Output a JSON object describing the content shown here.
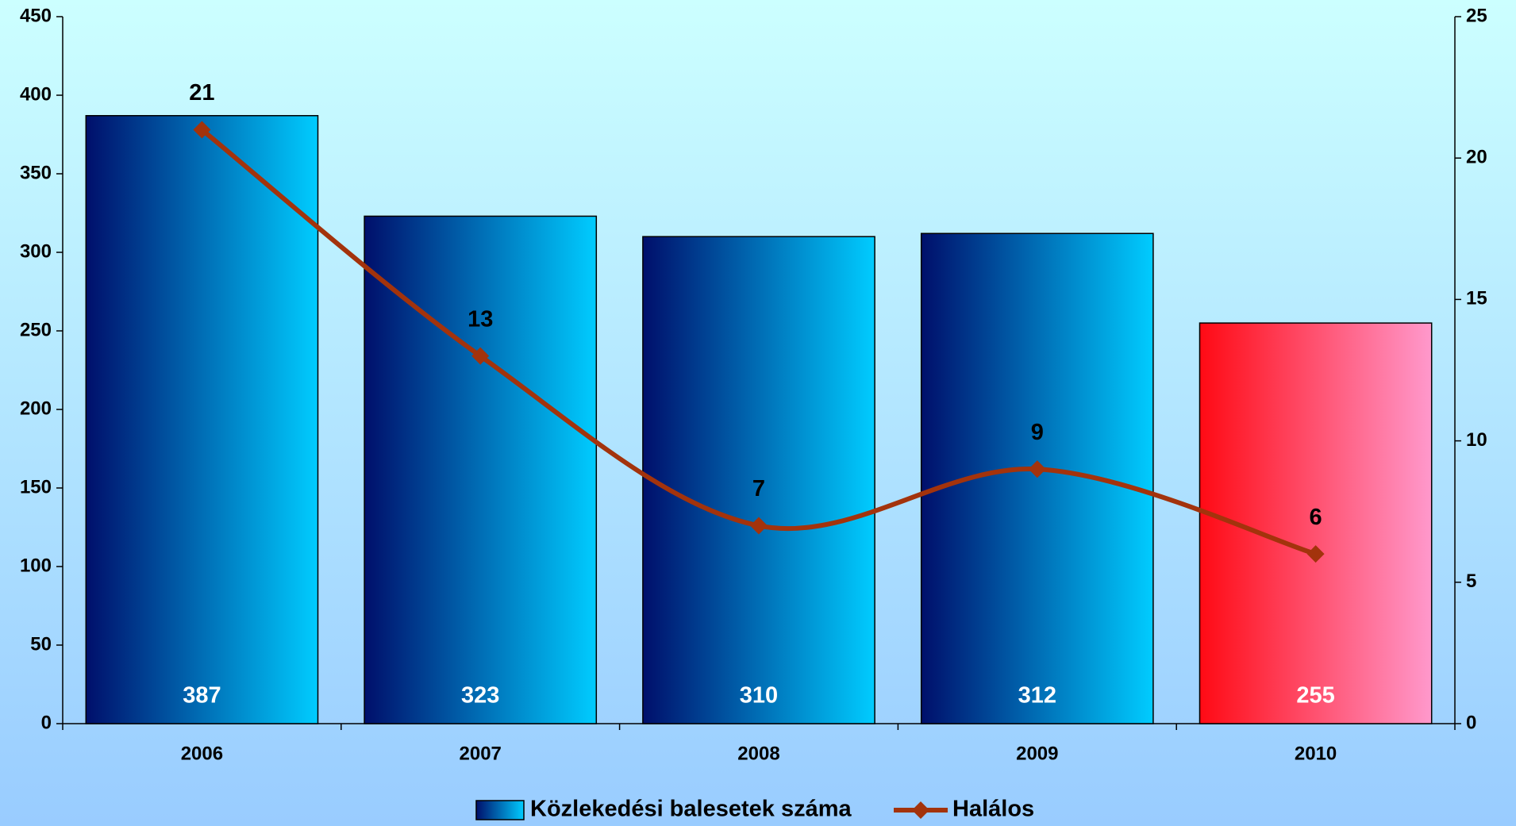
{
  "chart_data": {
    "type": "bar_line",
    "categories": [
      "2006",
      "2007",
      "2008",
      "2009",
      "2010"
    ],
    "series": [
      {
        "name": "Közlekedési balesetek száma",
        "type": "bar",
        "values": [
          387,
          323,
          310,
          312,
          255
        ],
        "colors": [
          [
            "#000f6b",
            "#00ccff"
          ],
          [
            "#000f6b",
            "#00ccff"
          ],
          [
            "#000f6b",
            "#00ccff"
          ],
          [
            "#000f6b",
            "#00ccff"
          ],
          [
            "#ff0a14",
            "#ff99cc"
          ]
        ]
      },
      {
        "name": "Halálos",
        "type": "line",
        "axis": "y2",
        "color": "#a3330c",
        "values": [
          21,
          13,
          7,
          9,
          6
        ]
      }
    ],
    "ylim": [
      0,
      450
    ],
    "yticks": [
      0,
      50,
      100,
      150,
      200,
      250,
      300,
      350,
      400,
      450
    ],
    "y2lim": [
      0,
      25
    ],
    "y2ticks": [
      0,
      5,
      10,
      15,
      20,
      25
    ],
    "legend": "bottom"
  }
}
